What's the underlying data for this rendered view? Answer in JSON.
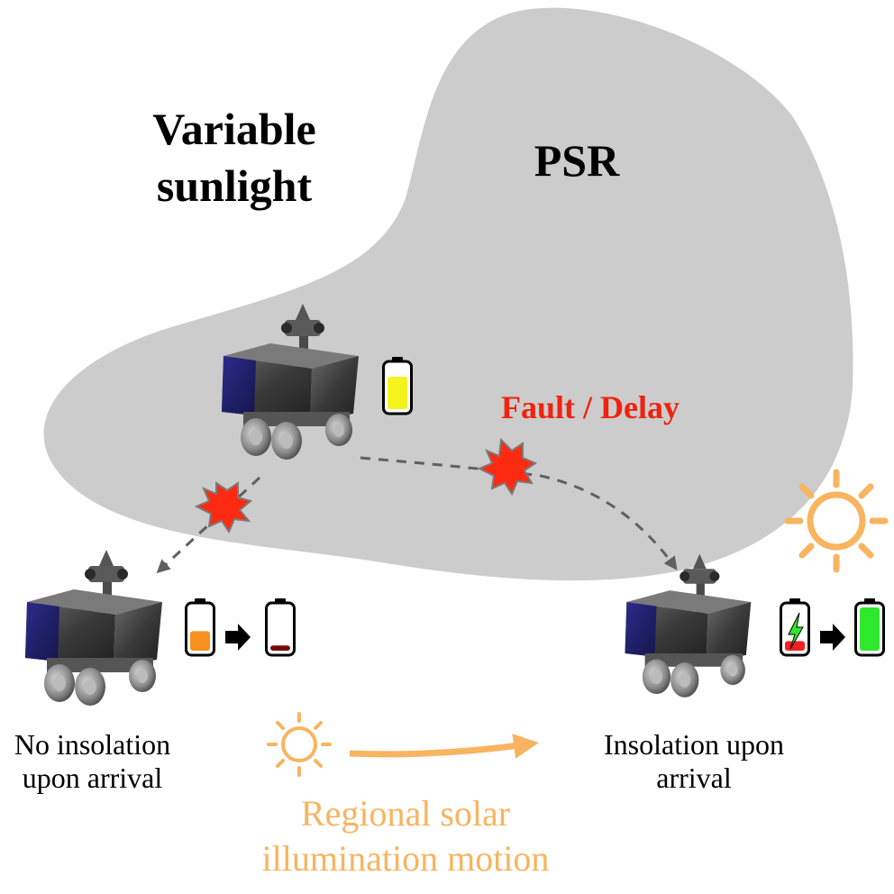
{
  "labels": {
    "variable_sunlight": "Variable sunlight",
    "psr": "PSR",
    "fault_delay": "Fault / Delay",
    "no_insolation": "No insolation upon arrival",
    "insolation": "Insolation upon arrival",
    "regional_motion": "Regional solar illumination motion"
  },
  "colors": {
    "psr_region": "#cccccc",
    "fault_text": "#f0220f",
    "fault_burst": "#ff2a12",
    "solar_orange": "#f8b460",
    "battery_yellow": "#f4f41c",
    "battery_orange": "#f7901e",
    "battery_darkred": "#7a0a0a",
    "battery_red": "#f22020",
    "battery_green": "#2ee82e",
    "rover_panel_blue": "#23237a"
  },
  "icons": {
    "rover": "rover-icon",
    "battery": "battery-icon",
    "sun": "sun-icon",
    "fault": "fault-burst-icon",
    "arrow": "arrow-icon",
    "lightning": "lightning-icon"
  },
  "batteries": {
    "top_level": 0.75,
    "left_before_level": 0.45,
    "left_after_level": 0.12,
    "right_before_level": 0.22,
    "right_after_level": 1.0
  }
}
